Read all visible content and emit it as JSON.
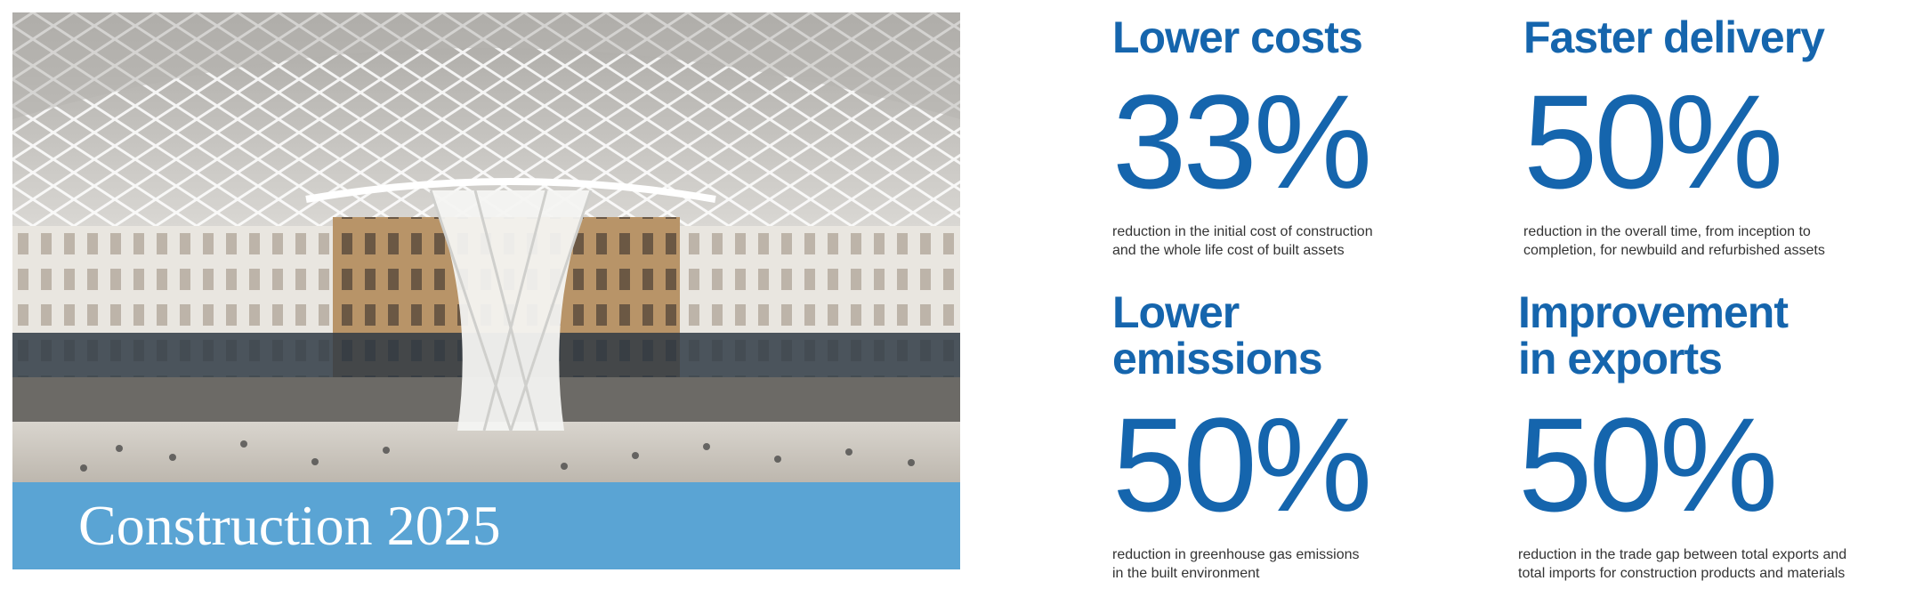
{
  "photo": {
    "alt_icon": "station-concourse-photo",
    "colors": {
      "roof": "#d8d6d2",
      "facade": "#b89468",
      "floor": "#cfc9c0",
      "band": "#5aa4d4"
    }
  },
  "caption": {
    "title": "Construction 2025"
  },
  "stats": [
    {
      "heading_lines": [
        "Lower costs"
      ],
      "value": "33%",
      "desc_lines": [
        "reduction in the initial cost of construction",
        "and the whole life cost of built assets"
      ]
    },
    {
      "heading_lines": [
        "Faster delivery"
      ],
      "value": "50%",
      "desc_lines": [
        "reduction in the overall time, from inception to",
        "completion, for newbuild and refurbished assets"
      ]
    },
    {
      "heading_lines": [
        "Lower",
        "emissions"
      ],
      "value": "50%",
      "desc_lines": [
        "reduction in greenhouse gas emissions",
        "in the built environment"
      ]
    },
    {
      "heading_lines": [
        "Improvement",
        "in exports"
      ],
      "value": "50%",
      "desc_lines": [
        "reduction in the trade gap between total exports and",
        "total imports for construction products and materials"
      ]
    }
  ],
  "theme": {
    "accent": "#1565ad",
    "text": "#333333"
  }
}
